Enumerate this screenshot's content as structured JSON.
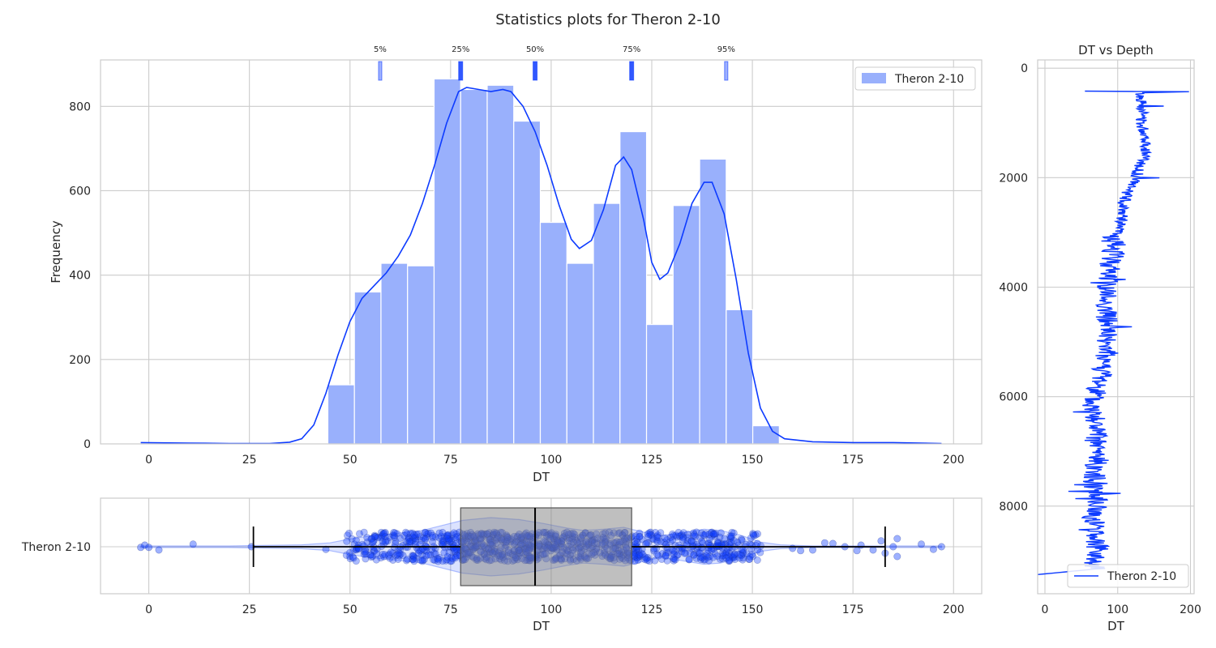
{
  "suptitle": "Statistics plots for Theron 2-10",
  "colors": {
    "accent": "#0d3bff",
    "hist_fill": "#99b0fc",
    "grid": "#cccccc",
    "spine": "#cccccc",
    "box": "#7f7f7f"
  },
  "chart_data": [
    {
      "id": "histogram",
      "type": "bar",
      "title": "",
      "xlabel": "DT",
      "ylabel": "Frequency",
      "xlim": [
        -12,
        207
      ],
      "ylim": [
        0,
        910
      ],
      "xticks": [
        0,
        25,
        50,
        75,
        100,
        125,
        150,
        175,
        200
      ],
      "yticks": [
        0,
        200,
        400,
        600,
        800
      ],
      "grid": true,
      "legend": {
        "placement": "top-right",
        "entries": [
          "Theron 2-10"
        ]
      },
      "bins": [
        {
          "x0": 44.5,
          "x1": 51.1,
          "value": 140
        },
        {
          "x0": 51.1,
          "x1": 57.7,
          "value": 360
        },
        {
          "x0": 57.7,
          "x1": 64.3,
          "value": 428
        },
        {
          "x0": 64.3,
          "x1": 70.9,
          "value": 422
        },
        {
          "x0": 70.9,
          "x1": 77.5,
          "value": 865
        },
        {
          "x0": 77.5,
          "x1": 84.1,
          "value": 840
        },
        {
          "x0": 84.1,
          "x1": 90.7,
          "value": 850
        },
        {
          "x0": 90.7,
          "x1": 97.3,
          "value": 765
        },
        {
          "x0": 97.3,
          "x1": 103.9,
          "value": 525
        },
        {
          "x0": 103.9,
          "x1": 110.5,
          "value": 428
        },
        {
          "x0": 110.5,
          "x1": 117.1,
          "value": 570
        },
        {
          "x0": 117.1,
          "x1": 123.7,
          "value": 740
        },
        {
          "x0": 123.7,
          "x1": 130.3,
          "value": 283
        },
        {
          "x0": 130.3,
          "x1": 136.9,
          "value": 565
        },
        {
          "x0": 136.9,
          "x1": 143.5,
          "value": 675
        },
        {
          "x0": 143.5,
          "x1": 150.1,
          "value": 318
        },
        {
          "x0": 150.1,
          "x1": 156.7,
          "value": 43
        }
      ],
      "kde": [
        [
          -2,
          3
        ],
        [
          10,
          2
        ],
        [
          20,
          1
        ],
        [
          30,
          1
        ],
        [
          35,
          4
        ],
        [
          38,
          12
        ],
        [
          41,
          45
        ],
        [
          44,
          120
        ],
        [
          47,
          210
        ],
        [
          50,
          290
        ],
        [
          53,
          345
        ],
        [
          56,
          375
        ],
        [
          59,
          405
        ],
        [
          62,
          445
        ],
        [
          65,
          495
        ],
        [
          68,
          570
        ],
        [
          71,
          660
        ],
        [
          74,
          760
        ],
        [
          77,
          835
        ],
        [
          79,
          845
        ],
        [
          82,
          840
        ],
        [
          85,
          835
        ],
        [
          88,
          840
        ],
        [
          90,
          835
        ],
        [
          93,
          800
        ],
        [
          96,
          740
        ],
        [
          99,
          660
        ],
        [
          102,
          565
        ],
        [
          105,
          485
        ],
        [
          107,
          463
        ],
        [
          110,
          482
        ],
        [
          113,
          555
        ],
        [
          116,
          660
        ],
        [
          118,
          680
        ],
        [
          120,
          650
        ],
        [
          123,
          530
        ],
        [
          125,
          430
        ],
        [
          127,
          390
        ],
        [
          129,
          405
        ],
        [
          132,
          475
        ],
        [
          135,
          570
        ],
        [
          138,
          620
        ],
        [
          140,
          620
        ],
        [
          143,
          545
        ],
        [
          146,
          390
        ],
        [
          149,
          215
        ],
        [
          152,
          85
        ],
        [
          155,
          30
        ],
        [
          158,
          12
        ],
        [
          165,
          5
        ],
        [
          175,
          3
        ],
        [
          185,
          3
        ],
        [
          197,
          1
        ]
      ],
      "percentiles": [
        {
          "label": "5%",
          "value": 57.5
        },
        {
          "label": "25%",
          "value": 77.5
        },
        {
          "label": "50%",
          "value": 96
        },
        {
          "label": "75%",
          "value": 120
        },
        {
          "label": "95%",
          "value": 143.5
        }
      ]
    },
    {
      "id": "boxplot",
      "type": "box",
      "xlabel": "DT",
      "category": "Theron 2-10",
      "xlim": [
        -12,
        207
      ],
      "xticks": [
        0,
        25,
        50,
        75,
        100,
        125,
        150,
        175,
        200
      ],
      "q1": 77.5,
      "median": 96,
      "q3": 120,
      "whisker_low": 26,
      "whisker_high": 183,
      "grid": true,
      "outliers": [
        [
          -2,
          0.02
        ],
        [
          -1,
          -0.05
        ],
        [
          0,
          0.02
        ],
        [
          2.5,
          0.1
        ],
        [
          11,
          -0.08
        ],
        [
          25.5,
          0.0
        ],
        [
          44,
          0.08
        ],
        [
          160,
          0.05
        ],
        [
          162,
          0.12
        ],
        [
          165,
          0.1
        ],
        [
          168,
          -0.12
        ],
        [
          170,
          -0.1
        ],
        [
          173,
          0.0
        ],
        [
          176,
          0.12
        ],
        [
          177,
          -0.05
        ],
        [
          180,
          0.1
        ],
        [
          182,
          -0.18
        ],
        [
          183,
          0.2
        ],
        [
          185,
          0.0
        ],
        [
          186,
          -0.25
        ],
        [
          186,
          0.3
        ],
        [
          192,
          -0.08
        ],
        [
          195,
          0.08
        ],
        [
          197,
          0.0
        ]
      ],
      "violin": [
        [
          -2,
          0.02
        ],
        [
          20,
          0.02
        ],
        [
          38,
          0.05
        ],
        [
          45,
          0.1
        ],
        [
          50,
          0.2
        ],
        [
          55,
          0.28
        ],
        [
          62,
          0.35
        ],
        [
          68,
          0.42
        ],
        [
          73,
          0.55
        ],
        [
          78,
          0.68
        ],
        [
          85,
          0.75
        ],
        [
          92,
          0.7
        ],
        [
          98,
          0.6
        ],
        [
          104,
          0.48
        ],
        [
          108,
          0.42
        ],
        [
          113,
          0.45
        ],
        [
          118,
          0.5
        ],
        [
          122,
          0.4
        ],
        [
          127,
          0.28
        ],
        [
          132,
          0.35
        ],
        [
          138,
          0.45
        ],
        [
          142,
          0.42
        ],
        [
          147,
          0.3
        ],
        [
          152,
          0.12
        ],
        [
          157,
          0.05
        ],
        [
          165,
          0.02
        ],
        [
          197,
          0.02
        ]
      ]
    },
    {
      "id": "depth-log",
      "type": "line",
      "title": "DT vs Depth",
      "xlabel": "DT",
      "ylabel": "",
      "xlim": [
        -10,
        205
      ],
      "ylim": [
        9600,
        -150
      ],
      "xticks": [
        0,
        100,
        200
      ],
      "yticks": [
        0,
        2000,
        4000,
        6000,
        8000
      ],
      "grid": true,
      "legend": {
        "placement": "lower-right",
        "entries": [
          "Theron 2-10"
        ]
      },
      "anchors": [
        [
          420,
          55
        ],
        [
          430,
          198
        ],
        [
          450,
          130
        ],
        [
          550,
          132
        ],
        [
          800,
          135
        ],
        [
          1000,
          132
        ],
        [
          1300,
          140
        ],
        [
          1600,
          138
        ],
        [
          1850,
          128
        ],
        [
          2100,
          122
        ],
        [
          2200,
          115
        ],
        [
          2400,
          110
        ],
        [
          2600,
          108
        ],
        [
          2800,
          105
        ],
        [
          3000,
          100
        ],
        [
          3100,
          90
        ],
        [
          3250,
          96
        ],
        [
          3500,
          92
        ],
        [
          3800,
          88
        ],
        [
          4100,
          84
        ],
        [
          4400,
          84
        ],
        [
          4700,
          87
        ],
        [
          5000,
          85
        ],
        [
          5300,
          85
        ],
        [
          5600,
          78
        ],
        [
          5900,
          72
        ],
        [
          6100,
          62
        ],
        [
          6400,
          70
        ],
        [
          6800,
          70
        ],
        [
          7200,
          72
        ],
        [
          7500,
          68
        ],
        [
          7900,
          72
        ],
        [
          8200,
          66
        ],
        [
          8600,
          72
        ],
        [
          9000,
          70
        ],
        [
          9150,
          68
        ],
        [
          9250,
          -10
        ]
      ]
    }
  ]
}
